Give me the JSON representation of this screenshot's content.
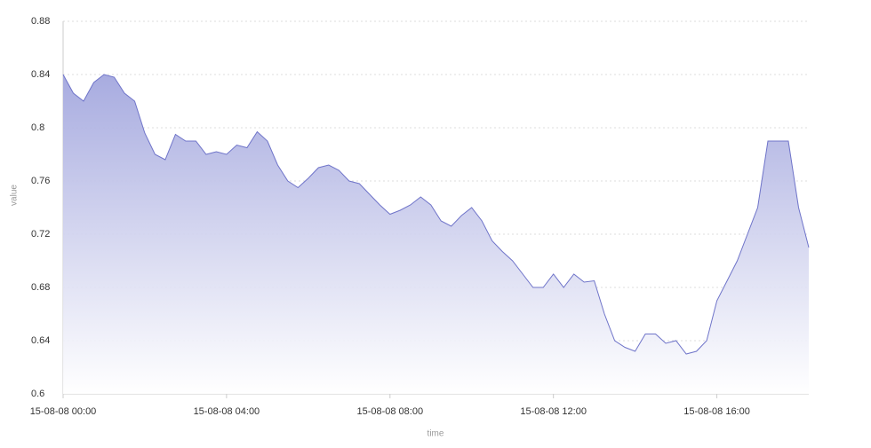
{
  "chart_data": {
    "type": "area",
    "x_label": "time",
    "y_label": "value",
    "x": [
      "15-08-08 00:00",
      "15-08-08 00:15",
      "15-08-08 00:30",
      "15-08-08 00:45",
      "15-08-08 01:00",
      "15-08-08 01:15",
      "15-08-08 01:30",
      "15-08-08 01:45",
      "15-08-08 02:00",
      "15-08-08 02:15",
      "15-08-08 02:30",
      "15-08-08 02:45",
      "15-08-08 03:00",
      "15-08-08 03:15",
      "15-08-08 03:30",
      "15-08-08 03:45",
      "15-08-08 04:00",
      "15-08-08 04:15",
      "15-08-08 04:30",
      "15-08-08 04:45",
      "15-08-08 05:00",
      "15-08-08 05:15",
      "15-08-08 05:30",
      "15-08-08 05:45",
      "15-08-08 06:00",
      "15-08-08 06:15",
      "15-08-08 06:30",
      "15-08-08 06:45",
      "15-08-08 07:00",
      "15-08-08 07:15",
      "15-08-08 07:30",
      "15-08-08 07:45",
      "15-08-08 08:00",
      "15-08-08 08:15",
      "15-08-08 08:30",
      "15-08-08 08:45",
      "15-08-08 09:00",
      "15-08-08 09:15",
      "15-08-08 09:30",
      "15-08-08 09:45",
      "15-08-08 10:00",
      "15-08-08 10:15",
      "15-08-08 10:30",
      "15-08-08 10:45",
      "15-08-08 11:00",
      "15-08-08 11:15",
      "15-08-08 11:30",
      "15-08-08 11:45",
      "15-08-08 12:00",
      "15-08-08 12:15",
      "15-08-08 12:30",
      "15-08-08 12:45",
      "15-08-08 13:00",
      "15-08-08 13:15",
      "15-08-08 13:30",
      "15-08-08 13:45",
      "15-08-08 14:00",
      "15-08-08 14:15",
      "15-08-08 14:30",
      "15-08-08 14:45",
      "15-08-08 15:00",
      "15-08-08 15:15",
      "15-08-08 15:30",
      "15-08-08 15:45",
      "15-08-08 16:00",
      "15-08-08 16:15",
      "15-08-08 16:30",
      "15-08-08 16:45",
      "15-08-08 17:00",
      "15-08-08 17:15",
      "15-08-08 17:30",
      "15-08-08 17:45",
      "15-08-08 18:00",
      "15-08-08 18:15"
    ],
    "values": [
      0.84,
      0.826,
      0.82,
      0.834,
      0.84,
      0.838,
      0.826,
      0.82,
      0.796,
      0.78,
      0.776,
      0.795,
      0.79,
      0.79,
      0.78,
      0.782,
      0.78,
      0.787,
      0.785,
      0.797,
      0.79,
      0.772,
      0.76,
      0.755,
      0.762,
      0.77,
      0.772,
      0.768,
      0.76,
      0.758,
      0.75,
      0.742,
      0.735,
      0.738,
      0.742,
      0.748,
      0.742,
      0.73,
      0.726,
      0.734,
      0.74,
      0.73,
      0.715,
      0.707,
      0.7,
      0.69,
      0.68,
      0.68,
      0.69,
      0.68,
      0.69,
      0.684,
      0.685,
      0.66,
      0.64,
      0.635,
      0.632,
      0.645,
      0.645,
      0.638,
      0.64,
      0.63,
      0.632,
      0.64,
      0.67,
      0.685,
      0.7,
      0.72,
      0.74,
      0.79,
      0.79,
      0.79,
      0.74,
      0.71
    ],
    "color": "#6f74c9",
    "xlim": [
      "15-08-08 00:00",
      "15-08-08 18:15"
    ],
    "xticks": [
      "15-08-08 00:00",
      "15-08-08 04:00",
      "15-08-08 08:00",
      "15-08-08 12:00",
      "15-08-08 16:00"
    ],
    "ylim": [
      0.6,
      0.88
    ],
    "yticks": [
      0.6,
      0.64,
      0.68,
      0.72,
      0.76,
      0.8,
      0.84,
      0.88
    ],
    "grid": true
  }
}
